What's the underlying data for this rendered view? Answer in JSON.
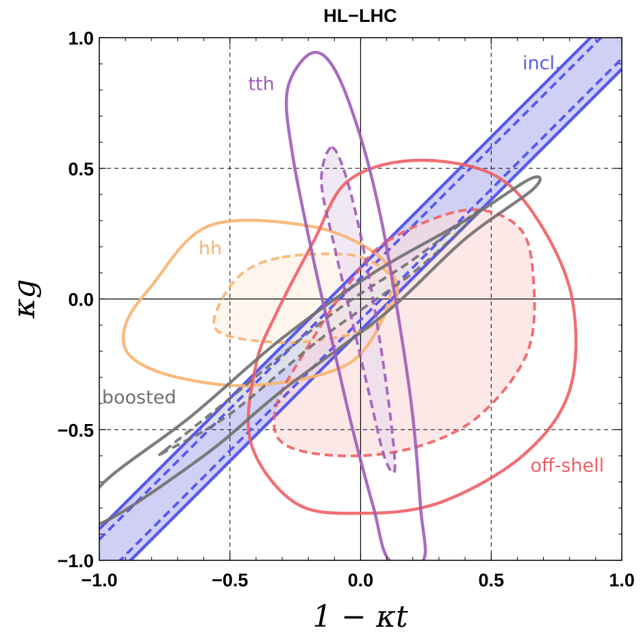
{
  "chart_data": {
    "type": "contour",
    "title": "HL−LHC",
    "xlabel": "1 − κt",
    "ylabel": "κg",
    "xlim": [
      -1.0,
      1.0
    ],
    "ylim": [
      -1.0,
      1.0
    ],
    "xticks": [
      "−1.0",
      "−0.5",
      "0.0",
      "0.5",
      "1.0"
    ],
    "yticks": [
      "−1.0",
      "−0.5",
      "0.0",
      "0.5",
      "1.0"
    ],
    "grid": "dashed at ±0.5",
    "series": [
      {
        "name": "incl.",
        "color": "#5a5af0",
        "fill": "#c8c8f5",
        "outer_band": {
          "slope": 1.0,
          "intercept_low": -0.12,
          "intercept_high": 0.12
        },
        "inner_band": {
          "slope": 1.0,
          "intercept_low": -0.08,
          "intercept_high": 0.08
        }
      },
      {
        "name": "tth",
        "color": "#a05cb8",
        "fill": "#eadcf0",
        "outer": [
          [
            -0.19,
            0.94
          ],
          [
            -0.1,
            0.88
          ],
          [
            0.0,
            0.62
          ],
          [
            0.08,
            0.3
          ],
          [
            0.15,
            -0.1
          ],
          [
            0.2,
            -0.45
          ],
          [
            0.23,
            -0.8
          ],
          [
            0.24,
            -1.0
          ],
          [
            0.11,
            -1.0
          ],
          [
            0.05,
            -0.8
          ],
          [
            -0.03,
            -0.5
          ],
          [
            -0.1,
            -0.2
          ],
          [
            -0.18,
            0.15
          ],
          [
            -0.26,
            0.55
          ],
          [
            -0.28,
            0.8
          ]
        ],
        "inner": [
          [
            -0.11,
            0.58
          ],
          [
            -0.05,
            0.45
          ],
          [
            0.02,
            0.15
          ],
          [
            0.08,
            -0.2
          ],
          [
            0.12,
            -0.5
          ],
          [
            0.13,
            -0.66
          ],
          [
            0.09,
            -0.6
          ],
          [
            0.03,
            -0.35
          ],
          [
            -0.04,
            -0.05
          ],
          [
            -0.1,
            0.2
          ],
          [
            -0.15,
            0.45
          ]
        ]
      },
      {
        "name": "hh",
        "color": "#f8b470",
        "fill": "#fef1e3",
        "outer": [
          [
            -0.58,
            0.28
          ],
          [
            -0.2,
            0.28
          ],
          [
            0.05,
            0.18
          ],
          [
            0.14,
            0.05
          ],
          [
            0.1,
            -0.05
          ],
          [
            -0.05,
            -0.25
          ],
          [
            -0.4,
            -0.33
          ],
          [
            -0.7,
            -0.3
          ],
          [
            -0.88,
            -0.22
          ],
          [
            -0.9,
            -0.1
          ],
          [
            -0.8,
            0.05
          ]
        ],
        "inner": [
          [
            -0.3,
            0.16
          ],
          [
            -0.05,
            0.17
          ],
          [
            0.08,
            0.12
          ],
          [
            0.12,
            0.05
          ],
          [
            0.05,
            -0.1
          ],
          [
            -0.18,
            -0.16
          ],
          [
            -0.4,
            -0.16
          ],
          [
            -0.55,
            -0.12
          ],
          [
            -0.54,
            -0.02
          ],
          [
            -0.45,
            0.1
          ]
        ]
      },
      {
        "name": "off-shell",
        "color": "#f05f64",
        "fill": "#fcdcdc",
        "outer": [
          [
            -0.05,
            0.45
          ],
          [
            0.2,
            0.53
          ],
          [
            0.5,
            0.48
          ],
          [
            0.68,
            0.3
          ],
          [
            0.81,
            0.0
          ],
          [
            0.8,
            -0.35
          ],
          [
            0.62,
            -0.6
          ],
          [
            0.3,
            -0.78
          ],
          [
            0.0,
            -0.82
          ],
          [
            -0.25,
            -0.78
          ],
          [
            -0.42,
            -0.55
          ],
          [
            -0.4,
            -0.25
          ],
          [
            -0.32,
            -0.05
          ],
          [
            -0.18,
            0.22
          ]
        ],
        "inner": [
          [
            0.1,
            0.22
          ],
          [
            0.4,
            0.34
          ],
          [
            0.6,
            0.28
          ],
          [
            0.66,
            0.1
          ],
          [
            0.64,
            -0.2
          ],
          [
            0.45,
            -0.45
          ],
          [
            0.2,
            -0.57
          ],
          [
            -0.08,
            -0.6
          ],
          [
            -0.3,
            -0.55
          ],
          [
            -0.32,
            -0.4
          ],
          [
            -0.2,
            -0.18
          ],
          [
            -0.05,
            0.05
          ]
        ]
      },
      {
        "name": "boosted",
        "color": "#707070",
        "fill": "#e6e6e6",
        "outer": [
          [
            -1.0,
            -0.72
          ],
          [
            -0.65,
            -0.45
          ],
          [
            -0.3,
            -0.15
          ],
          [
            0.05,
            0.1
          ],
          [
            0.4,
            0.3
          ],
          [
            0.65,
            0.46
          ],
          [
            0.66,
            0.42
          ],
          [
            0.4,
            0.23
          ],
          [
            0.1,
            -0.05
          ],
          [
            -0.3,
            -0.35
          ],
          [
            -0.6,
            -0.6
          ],
          [
            -1.0,
            -0.86
          ]
        ],
        "inner": [
          [
            -0.75,
            -0.58
          ],
          [
            -0.5,
            -0.38
          ],
          [
            -0.1,
            -0.05
          ],
          [
            0.2,
            0.15
          ],
          [
            0.44,
            0.33
          ],
          [
            0.42,
            0.3
          ],
          [
            0.2,
            0.1
          ],
          [
            -0.15,
            -0.15
          ],
          [
            -0.5,
            -0.44
          ],
          [
            -0.74,
            -0.58
          ]
        ]
      }
    ]
  }
}
